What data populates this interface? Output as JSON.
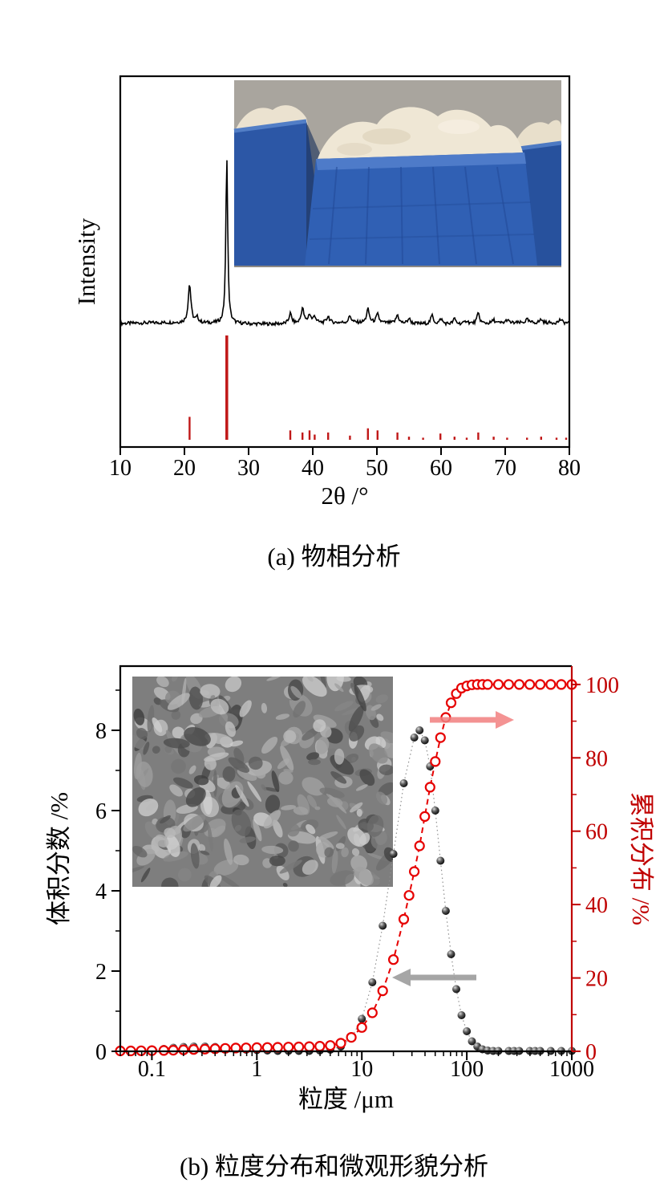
{
  "page": {
    "background": "#ffffff"
  },
  "captions": {
    "a": "(a) 物相分析",
    "b": "(b) 粒度分布和微观形貌分析"
  },
  "chart_data": [
    {
      "id": "xrd",
      "type": "line",
      "xlabel": "2θ /°",
      "ylabel": "Intensity",
      "xlim": [
        10,
        80
      ],
      "x_ticks": [
        10,
        20,
        30,
        40,
        50,
        60,
        70,
        80
      ],
      "grid": false,
      "curve_color": "#000000",
      "reference_color": "#c01818",
      "series": [
        {
          "name": "measured XRD pattern",
          "style": "line",
          "color": "#000000",
          "peaks": [
            [
              20.8,
              0.23
            ],
            [
              22.0,
              0.03
            ],
            [
              26.6,
              1.0
            ],
            [
              36.5,
              0.06
            ],
            [
              38.4,
              0.09
            ],
            [
              39.5,
              0.05
            ],
            [
              40.3,
              0.04
            ],
            [
              42.4,
              0.04
            ],
            [
              45.8,
              0.04
            ],
            [
              48.6,
              0.08
            ],
            [
              50.1,
              0.05
            ],
            [
              53.2,
              0.05
            ],
            [
              55.0,
              0.03
            ],
            [
              58.6,
              0.05
            ],
            [
              60.0,
              0.03
            ],
            [
              62.1,
              0.03
            ],
            [
              64.0,
              0.02
            ],
            [
              65.8,
              0.06
            ],
            [
              68.2,
              0.02
            ],
            [
              70.3,
              0.02
            ],
            [
              73.4,
              0.02
            ],
            [
              75.6,
              0.02
            ],
            [
              78.6,
              0.02
            ]
          ]
        },
        {
          "name": "reference stick pattern",
          "style": "sticks",
          "color": "#c01818",
          "sticks": [
            [
              20.8,
              0.22
            ],
            [
              26.6,
              1.0
            ],
            [
              36.5,
              0.09
            ],
            [
              38.4,
              0.07
            ],
            [
              39.5,
              0.09
            ],
            [
              40.3,
              0.05
            ],
            [
              42.4,
              0.07
            ],
            [
              45.8,
              0.04
            ],
            [
              48.6,
              0.11
            ],
            [
              50.1,
              0.09
            ],
            [
              53.2,
              0.07
            ],
            [
              55.0,
              0.03
            ],
            [
              57.2,
              0.02
            ],
            [
              59.9,
              0.06
            ],
            [
              62.1,
              0.03
            ],
            [
              64.0,
              0.02
            ],
            [
              65.8,
              0.07
            ],
            [
              68.2,
              0.03
            ],
            [
              70.3,
              0.02
            ],
            [
              73.4,
              0.02
            ],
            [
              75.6,
              0.03
            ],
            [
              78.0,
              0.02
            ],
            [
              79.5,
              0.02
            ]
          ]
        }
      ],
      "inset": {
        "description": "photograph of white powder piled in three blue plastic bins"
      }
    },
    {
      "id": "psd",
      "type": "scatter",
      "xscale": "log",
      "xlabel": "粒度 /μm",
      "ylabel_left": "体积分数 /%",
      "ylabel_right": "累积分布 /%",
      "xlim": [
        0.05,
        1000
      ],
      "x_ticks": [
        0.1,
        1,
        10,
        100,
        1000
      ],
      "ylim_left": [
        0,
        9.6
      ],
      "y_ticks_left": [
        0,
        2,
        4,
        6,
        8
      ],
      "ylim_right": [
        0,
        105
      ],
      "y_ticks_right": [
        0,
        20,
        40,
        60,
        80,
        100
      ],
      "right_axis_color": "#c00000",
      "series": [
        {
          "name": "体积分数",
          "axis": "left",
          "marker": "filled-ball",
          "color": "#1a1a1a",
          "points": [
            [
              0.05,
              0.01
            ],
            [
              0.063,
              0.01
            ],
            [
              0.079,
              0.02
            ],
            [
              0.1,
              0.04
            ],
            [
              0.13,
              0.06
            ],
            [
              0.16,
              0.09
            ],
            [
              0.2,
              0.11
            ],
            [
              0.25,
              0.12
            ],
            [
              0.32,
              0.12
            ],
            [
              0.4,
              0.11
            ],
            [
              0.5,
              0.08
            ],
            [
              0.63,
              0.06
            ],
            [
              0.79,
              0.04
            ],
            [
              1,
              0.03
            ],
            [
              1.26,
              0.02
            ],
            [
              1.58,
              0.01
            ],
            [
              2,
              0.01
            ],
            [
              2.51,
              0.01
            ],
            [
              3.16,
              0.01
            ],
            [
              3.98,
              0.02
            ],
            [
              5.01,
              0.04
            ],
            [
              6.31,
              0.12
            ],
            [
              7.94,
              0.33
            ],
            [
              10,
              0.81
            ],
            [
              12.6,
              1.72
            ],
            [
              15.8,
              3.13
            ],
            [
              20,
              4.92
            ],
            [
              25.1,
              6.68
            ],
            [
              31.6,
              7.82
            ],
            [
              35.5,
              8.0
            ],
            [
              39.8,
              7.75
            ],
            [
              44.7,
              7.1
            ],
            [
              50.1,
              6.0
            ],
            [
              56.2,
              4.75
            ],
            [
              63.1,
              3.5
            ],
            [
              70.8,
              2.42
            ],
            [
              79.4,
              1.55
            ],
            [
              89.1,
              0.9
            ],
            [
              100,
              0.5
            ],
            [
              112,
              0.25
            ],
            [
              126,
              0.12
            ],
            [
              141,
              0.05
            ],
            [
              158,
              0.02
            ],
            [
              178,
              0.01
            ],
            [
              200,
              0.01
            ],
            [
              251,
              0.01
            ],
            [
              282,
              0.01
            ],
            [
              316,
              0.01
            ],
            [
              398,
              0.01
            ],
            [
              447,
              0.01
            ],
            [
              501,
              0.01
            ],
            [
              631,
              0.01
            ],
            [
              794,
              0.01
            ],
            [
              1000,
              0.01
            ]
          ]
        },
        {
          "name": "累积分布",
          "axis": "right",
          "marker": "open-circle",
          "color": "#e60000",
          "line_style": "dashed",
          "points": [
            [
              0.05,
              0.1
            ],
            [
              0.063,
              0.1
            ],
            [
              0.079,
              0.15
            ],
            [
              0.1,
              0.2
            ],
            [
              0.13,
              0.25
            ],
            [
              0.16,
              0.3
            ],
            [
              0.2,
              0.4
            ],
            [
              0.25,
              0.5
            ],
            [
              0.32,
              0.6
            ],
            [
              0.4,
              0.7
            ],
            [
              0.5,
              0.8
            ],
            [
              0.63,
              0.9
            ],
            [
              0.79,
              0.95
            ],
            [
              1,
              1.0
            ],
            [
              1.26,
              1.05
            ],
            [
              1.58,
              1.1
            ],
            [
              2,
              1.15
            ],
            [
              2.51,
              1.2
            ],
            [
              3.16,
              1.3
            ],
            [
              3.98,
              1.4
            ],
            [
              5.01,
              1.6
            ],
            [
              6.31,
              2.2
            ],
            [
              7.94,
              3.8
            ],
            [
              10,
              6.5
            ],
            [
              12.6,
              10.5
            ],
            [
              15.8,
              16.5
            ],
            [
              20,
              25
            ],
            [
              25.1,
              36
            ],
            [
              28.2,
              42.5
            ],
            [
              31.6,
              49
            ],
            [
              35.5,
              56
            ],
            [
              39.8,
              64
            ],
            [
              44.7,
              72
            ],
            [
              50.1,
              79
            ],
            [
              56.2,
              85.5
            ],
            [
              63.1,
              91
            ],
            [
              70.8,
              95
            ],
            [
              79.4,
              97.5
            ],
            [
              89.1,
              99
            ],
            [
              100,
              99.6
            ],
            [
              112,
              99.9
            ],
            [
              126,
              100
            ],
            [
              141,
              100
            ],
            [
              158,
              100
            ],
            [
              200,
              100
            ],
            [
              251,
              100
            ],
            [
              316,
              100
            ],
            [
              398,
              100
            ],
            [
              501,
              100
            ],
            [
              631,
              100
            ],
            [
              794,
              100
            ],
            [
              1000,
              100
            ]
          ]
        }
      ],
      "annotations": [
        {
          "type": "arrow",
          "direction": "right",
          "color": "#f28080",
          "meaning": "cumulative curve reads on right axis"
        },
        {
          "type": "arrow",
          "direction": "left",
          "color": "#9c9c9c",
          "meaning": "volume curve reads on left axis"
        }
      ],
      "inset": {
        "description": "SEM micrograph of irregular flaky powder particles"
      }
    }
  ]
}
